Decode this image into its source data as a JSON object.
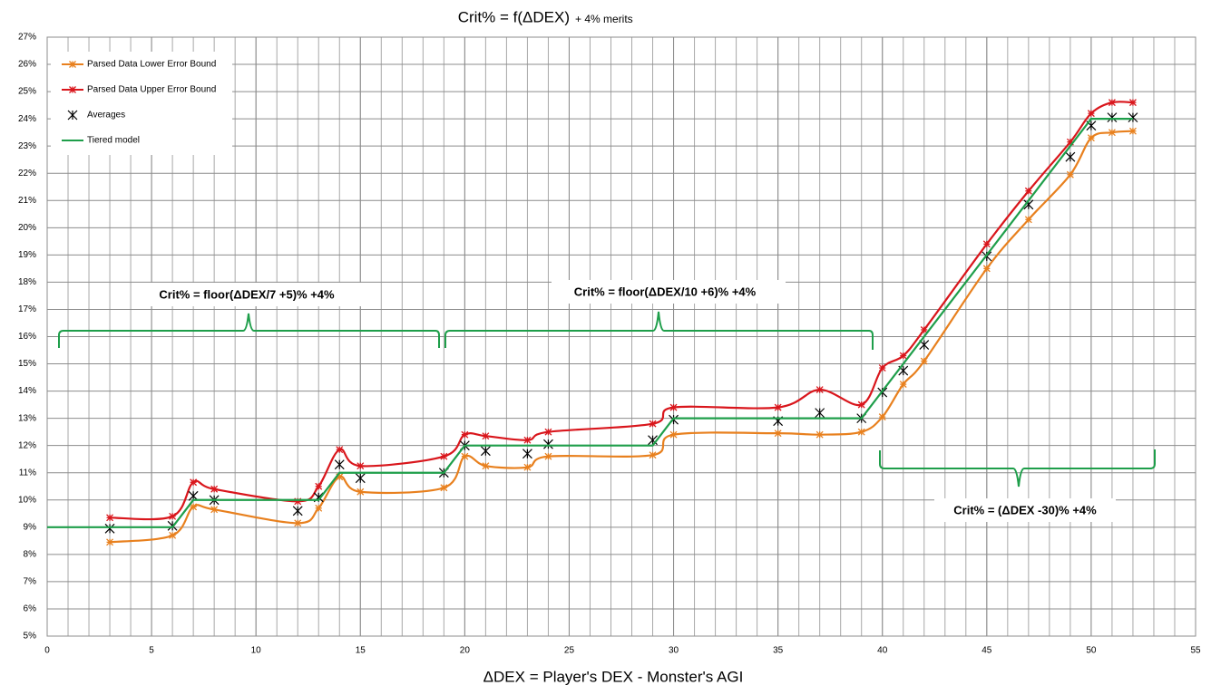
{
  "chart_data": {
    "type": "line",
    "title": "Crit% = f(ΔDEX)",
    "subtitle": "+ 4% merits",
    "x_label": "ΔDEX = Player's DEX - Monster's AGI",
    "xlim": [
      0,
      55
    ],
    "xticks": [
      0,
      5,
      10,
      15,
      20,
      25,
      30,
      35,
      40,
      45,
      50,
      55
    ],
    "minor_grid_step": 1,
    "ylim": [
      5,
      27
    ],
    "yticks": [
      {
        "value": 5,
        "label": "5%"
      },
      {
        "value": 6,
        "label": "6%"
      },
      {
        "value": 7,
        "label": "7%"
      },
      {
        "value": 8,
        "label": "8%"
      },
      {
        "value": 9,
        "label": "9%"
      },
      {
        "value": 10,
        "label": "10%"
      },
      {
        "value": 11,
        "label": "11%"
      },
      {
        "value": 12,
        "label": "12%"
      },
      {
        "value": 13,
        "label": "13%"
      },
      {
        "value": 14,
        "label": "14%"
      },
      {
        "value": 15,
        "label": "15%"
      },
      {
        "value": 16,
        "label": "16%"
      },
      {
        "value": 17,
        "label": "17%"
      },
      {
        "value": 18,
        "label": "18%"
      },
      {
        "value": 19,
        "label": "19%"
      },
      {
        "value": 20,
        "label": "20%"
      },
      {
        "value": 21,
        "label": "21%"
      },
      {
        "value": 22,
        "label": "22%"
      },
      {
        "value": 23,
        "label": "23%"
      },
      {
        "value": 24,
        "label": "24%"
      },
      {
        "value": 25,
        "label": "25%"
      },
      {
        "value": 26,
        "label": "26%"
      },
      {
        "value": 27,
        "label": "27%"
      }
    ],
    "grid": true,
    "legend": "top-left",
    "series": [
      {
        "name": "Parsed Data Lower Error Bound",
        "color": "#e8801e",
        "style": "smooth-line",
        "marker": "star",
        "x": [
          3,
          6,
          7,
          8,
          12,
          13,
          14,
          15,
          19,
          20,
          21,
          23,
          24,
          29,
          30,
          35,
          37,
          39,
          40,
          41,
          42,
          45,
          47,
          49,
          50,
          51,
          52
        ],
        "values": [
          8.45,
          8.7,
          9.75,
          9.65,
          9.15,
          9.7,
          10.85,
          10.3,
          10.45,
          11.6,
          11.25,
          11.2,
          11.6,
          11.65,
          12.4,
          12.45,
          12.4,
          12.5,
          13.05,
          14.25,
          15.1,
          18.5,
          20.3,
          21.95,
          23.3,
          23.5,
          23.55
        ]
      },
      {
        "name": "Parsed Data Upper Error Bound",
        "color": "#d9161c",
        "style": "smooth-line",
        "marker": "star",
        "x": [
          3,
          6,
          7,
          8,
          12,
          13,
          14,
          15,
          19,
          20,
          21,
          23,
          24,
          29,
          30,
          35,
          37,
          39,
          40,
          41,
          42,
          45,
          47,
          49,
          50,
          51,
          52
        ],
        "values": [
          9.35,
          9.4,
          10.65,
          10.4,
          9.95,
          10.5,
          11.85,
          11.25,
          11.6,
          12.4,
          12.35,
          12.2,
          12.5,
          12.8,
          13.4,
          13.4,
          14.05,
          13.5,
          14.85,
          15.3,
          16.25,
          19.4,
          21.35,
          23.15,
          24.2,
          24.6,
          24.6
        ]
      },
      {
        "name": "Averages",
        "color": "#000000",
        "style": "points",
        "marker": "asterisk",
        "x": [
          3,
          6,
          7,
          8,
          12,
          13,
          14,
          15,
          19,
          20,
          21,
          23,
          24,
          29,
          30,
          35,
          37,
          39,
          40,
          41,
          42,
          45,
          47,
          49,
          50,
          51,
          52
        ],
        "values": [
          8.95,
          9.05,
          10.15,
          10.0,
          9.6,
          10.1,
          11.3,
          10.8,
          11.0,
          12.0,
          11.8,
          11.7,
          12.05,
          12.2,
          12.95,
          12.9,
          13.2,
          13.0,
          13.95,
          14.75,
          15.7,
          18.95,
          20.85,
          22.6,
          23.75,
          24.05,
          24.05
        ]
      },
      {
        "name": "Tiered model",
        "color": "#1e9e4a",
        "style": "line",
        "marker": "none",
        "x": [
          0,
          6,
          7,
          13,
          14,
          19,
          20,
          29,
          30,
          39,
          50,
          52
        ],
        "values": [
          9,
          9,
          10,
          10,
          11,
          11,
          12,
          12,
          13,
          13,
          24,
          24
        ]
      }
    ],
    "annotations": [
      "Crit% = floor(ΔDEX/7 +5)% +4%",
      "Crit% = floor(ΔDEX/10 +6)% +4%",
      "Crit% = (ΔDEX -30)% +4%"
    ]
  }
}
